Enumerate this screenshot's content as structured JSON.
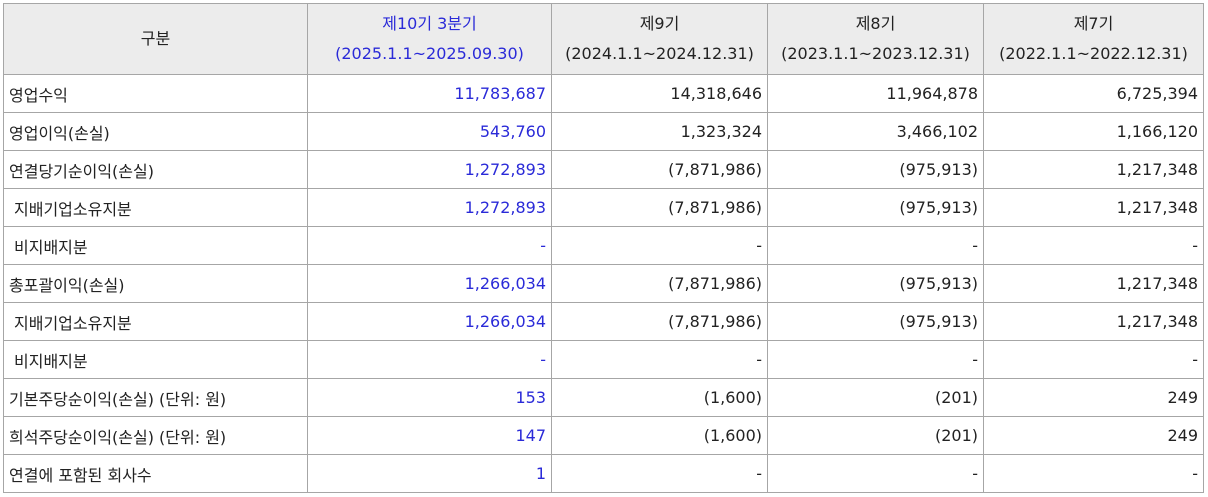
{
  "header": {
    "label": "구분",
    "columns": [
      {
        "title": "제10기 3분기",
        "period": "(2025.1.1~2025.09.30)"
      },
      {
        "title": "제9기",
        "period": "(2024.1.1~2024.12.31)"
      },
      {
        "title": "제8기",
        "period": "(2023.1.1~2023.12.31)"
      },
      {
        "title": "제7기",
        "period": "(2022.1.1~2022.12.31)"
      }
    ]
  },
  "rows": [
    {
      "label": "영업수익",
      "values": [
        "11,783,687",
        "14,318,646",
        "11,964,878",
        "6,725,394"
      ]
    },
    {
      "label": "영업이익(손실)",
      "values": [
        "543,760",
        "1,323,324",
        "3,466,102",
        "1,166,120"
      ]
    },
    {
      "label": "연결당기순이익(손실)",
      "values": [
        "1,272,893",
        "(7,871,986)",
        "(975,913)",
        "1,217,348"
      ]
    },
    {
      "label": "지배기업소유지분",
      "values": [
        "1,272,893",
        "(7,871,986)",
        "(975,913)",
        "1,217,348"
      ]
    },
    {
      "label": "비지배지분",
      "values": [
        "-",
        "-",
        "-",
        "-"
      ]
    },
    {
      "label": "총포괄이익(손실)",
      "values": [
        "1,266,034",
        "(7,871,986)",
        "(975,913)",
        "1,217,348"
      ]
    },
    {
      "label": "지배기업소유지분",
      "values": [
        "1,266,034",
        "(7,871,986)",
        "(975,913)",
        "1,217,348"
      ]
    },
    {
      "label": "비지배지분",
      "values": [
        "-",
        "-",
        "-",
        "-"
      ]
    },
    {
      "label": "기본주당순이익(손실) (단위: 원)",
      "values": [
        "153",
        "(1,600)",
        "(201)",
        "249"
      ]
    },
    {
      "label": "희석주당순이익(손실) (단위: 원)",
      "values": [
        "147",
        "(1,600)",
        "(201)",
        "249"
      ]
    },
    {
      "label": "연결에 포함된 회사수",
      "values": [
        "1",
        "-",
        "-",
        "-"
      ]
    }
  ]
}
